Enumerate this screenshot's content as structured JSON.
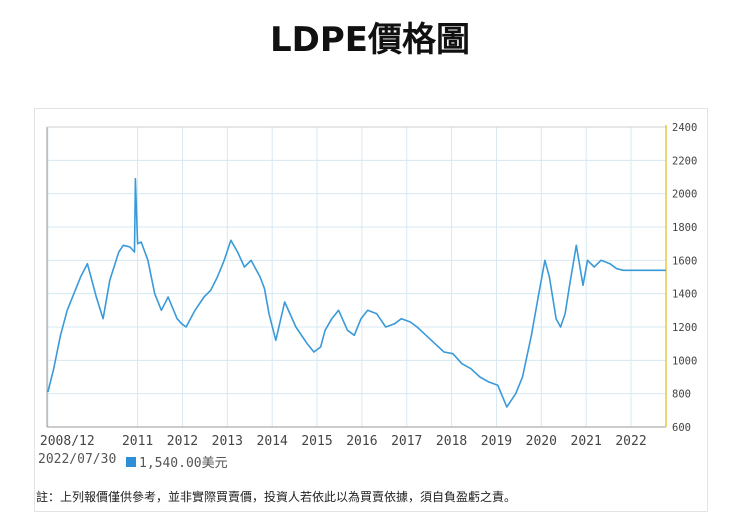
{
  "page": {
    "title": "LDPE價格圖",
    "date": "2022/07/30",
    "price": "1,540.00美元",
    "note": "註：上列報價僅供參考，並非實際買賣價，投資人若依此以為買賣依據，須自負盈虧之責。"
  },
  "colors": {
    "line": "#3a9ad9",
    "grid": "#d6e8f3",
    "axis_right": "#e8c840",
    "tick_text": "#444444",
    "legend": "#2e8fd6"
  },
  "chart_data": {
    "type": "line",
    "title": "LDPE價格圖",
    "xlabel": "",
    "ylabel": "",
    "ylim": [
      600,
      2400
    ],
    "xlim": [
      2008.9,
      2022.7
    ],
    "yticks": [
      "600",
      "800",
      "1000",
      "1200",
      "1400",
      "1600",
      "1800",
      "2000",
      "2200",
      "2400"
    ],
    "ytick_values": [
      600,
      800,
      1000,
      1200,
      1400,
      1600,
      1800,
      2000,
      2200,
      2400
    ],
    "xticks": [
      {
        "label": "2008/12",
        "value": 2008.92
      },
      {
        "label": "2011",
        "value": 2010.92
      },
      {
        "label": "2012",
        "value": 2011.92
      },
      {
        "label": "2013",
        "value": 2012.92
      },
      {
        "label": "2014",
        "value": 2013.92
      },
      {
        "label": "2015",
        "value": 2014.92
      },
      {
        "label": "2016",
        "value": 2015.92
      },
      {
        "label": "2017",
        "value": 2016.92
      },
      {
        "label": "2018",
        "value": 2017.92
      },
      {
        "label": "2019",
        "value": 2018.92
      },
      {
        "label": "2020",
        "value": 2019.92
      },
      {
        "label": "2021",
        "value": 2020.92
      },
      {
        "label": "2022",
        "value": 2021.92
      }
    ],
    "series": [
      {
        "name": "LDPE",
        "x": [
          2008.92,
          2009.05,
          2009.2,
          2009.35,
          2009.5,
          2009.65,
          2009.8,
          2010.0,
          2010.15,
          2010.3,
          2010.5,
          2010.6,
          2010.75,
          2010.85,
          2010.87,
          2010.92,
          2011.0,
          2011.15,
          2011.3,
          2011.45,
          2011.6,
          2011.8,
          2011.9,
          2012.0,
          2012.2,
          2012.4,
          2012.55,
          2012.7,
          2012.85,
          2013.0,
          2013.15,
          2013.3,
          2013.45,
          2013.65,
          2013.75,
          2013.85,
          2014.0,
          2014.2,
          2014.45,
          2014.7,
          2014.85,
          2015.0,
          2015.1,
          2015.25,
          2015.4,
          2015.6,
          2015.75,
          2015.9,
          2016.05,
          2016.25,
          2016.45,
          2016.65,
          2016.8,
          2017.0,
          2017.15,
          2017.35,
          2017.55,
          2017.75,
          2017.95,
          2018.15,
          2018.35,
          2018.55,
          2018.75,
          2018.95,
          2019.15,
          2019.35,
          2019.5,
          2019.7,
          2019.85,
          2020.0,
          2020.1,
          2020.25,
          2020.35,
          2020.45,
          2020.55,
          2020.7,
          2020.85,
          2020.95,
          2021.1,
          2021.25,
          2021.45,
          2021.6,
          2021.75,
          2021.9,
          2022.0,
          2022.1,
          2022.2,
          2022.35,
          2022.5,
          2022.7
        ],
        "values": [
          810,
          950,
          1150,
          1300,
          1400,
          1500,
          1580,
          1380,
          1250,
          1480,
          1650,
          1690,
          1680,
          1650,
          2090,
          1700,
          1710,
          1600,
          1400,
          1300,
          1380,
          1250,
          1220,
          1200,
          1300,
          1380,
          1420,
          1500,
          1600,
          1720,
          1650,
          1560,
          1600,
          1500,
          1430,
          1280,
          1120,
          1350,
          1200,
          1100,
          1050,
          1080,
          1180,
          1250,
          1300,
          1180,
          1150,
          1250,
          1300,
          1280,
          1200,
          1220,
          1250,
          1230,
          1200,
          1150,
          1100,
          1050,
          1040,
          980,
          950,
          900,
          870,
          850,
          720,
          800,
          900,
          1150,
          1380,
          1600,
          1500,
          1250,
          1200,
          1280,
          1450,
          1690,
          1450,
          1600,
          1560,
          1600,
          1580,
          1550,
          1540,
          1540,
          1540,
          1540,
          1540,
          1540,
          1540,
          1540
        ]
      }
    ]
  }
}
